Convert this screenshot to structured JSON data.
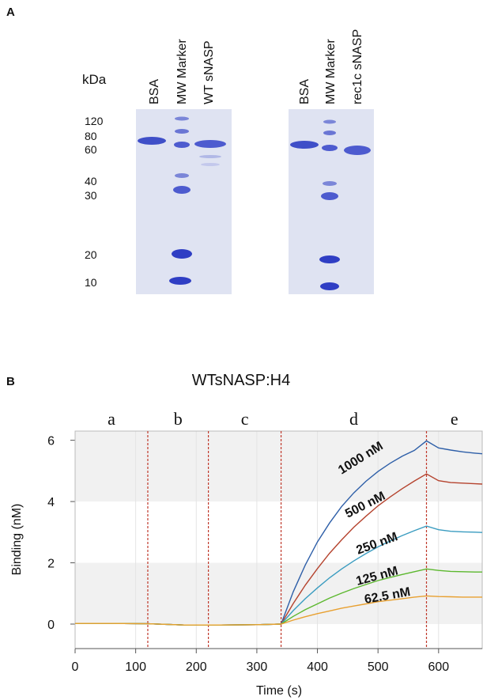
{
  "panel_a": {
    "label": "A",
    "unit": "kDa",
    "markers": [
      120,
      80,
      60,
      40,
      30,
      20,
      10
    ],
    "gels": [
      {
        "lanes": [
          "BSA",
          "MW Marker",
          "WT sNASP"
        ]
      },
      {
        "lanes": [
          "BSA",
          "MW Marker",
          "rec1c sNASP"
        ]
      }
    ]
  },
  "panel_b_label": "B",
  "chart_data": {
    "type": "line",
    "title": "WTsNASP:H4",
    "x_label": "Time (s)",
    "y_label": "Binding (nM)",
    "phases": [
      "a",
      "b",
      "c",
      "d",
      "e"
    ],
    "phase_boundaries": [
      120,
      220,
      340,
      580
    ],
    "x": [
      0,
      60,
      120,
      180,
      240,
      300,
      340,
      360,
      380,
      400,
      420,
      440,
      460,
      480,
      500,
      520,
      540,
      560,
      580,
      600,
      620,
      640,
      660,
      672
    ],
    "series": [
      {
        "name": "1000 nM",
        "color": "#2e5fa8",
        "values": [
          0.02,
          0.02,
          0.01,
          -0.03,
          -0.03,
          -0.02,
          0,
          1.05,
          1.93,
          2.68,
          3.3,
          3.84,
          4.28,
          4.66,
          4.98,
          5.25,
          5.48,
          5.67,
          5.98,
          5.75,
          5.68,
          5.62,
          5.58,
          5.56
        ]
      },
      {
        "name": "500 nM",
        "color": "#b5432e",
        "values": [
          0.02,
          0.02,
          0.01,
          -0.03,
          -0.03,
          -0.02,
          0,
          0.67,
          1.27,
          1.81,
          2.31,
          2.75,
          3.16,
          3.52,
          3.86,
          4.15,
          4.42,
          4.67,
          4.9,
          4.68,
          4.62,
          4.6,
          4.58,
          4.57
        ]
      },
      {
        "name": "250 nM",
        "color": "#3a9cc0",
        "values": [
          0.02,
          0.02,
          0.01,
          -0.03,
          -0.03,
          -0.02,
          0,
          0.44,
          0.83,
          1.18,
          1.51,
          1.8,
          2.06,
          2.3,
          2.52,
          2.71,
          2.89,
          3.05,
          3.2,
          3.08,
          3.03,
          3.01,
          3.0,
          2.99
        ]
      },
      {
        "name": "125 nM",
        "color": "#5cb82e",
        "values": [
          0.02,
          0.02,
          0.01,
          -0.03,
          -0.03,
          -0.02,
          0,
          0.25,
          0.47,
          0.66,
          0.85,
          1.01,
          1.16,
          1.29,
          1.42,
          1.52,
          1.62,
          1.71,
          1.8,
          1.75,
          1.72,
          1.71,
          1.7,
          1.7
        ]
      },
      {
        "name": "62.5 nM",
        "color": "#e8a030",
        "values": [
          0.02,
          0.02,
          0.01,
          -0.03,
          -0.03,
          -0.02,
          0,
          0.13,
          0.24,
          0.34,
          0.43,
          0.52,
          0.59,
          0.66,
          0.73,
          0.78,
          0.83,
          0.88,
          0.92,
          0.9,
          0.89,
          0.88,
          0.88,
          0.88
        ]
      }
    ],
    "xlim": [
      0,
      672
    ],
    "ylim": [
      -0.8,
      6.3
    ],
    "xticks": [
      0,
      100,
      200,
      300,
      400,
      500,
      600
    ],
    "yticks": [
      0,
      2,
      4,
      6
    ],
    "grid": true
  }
}
